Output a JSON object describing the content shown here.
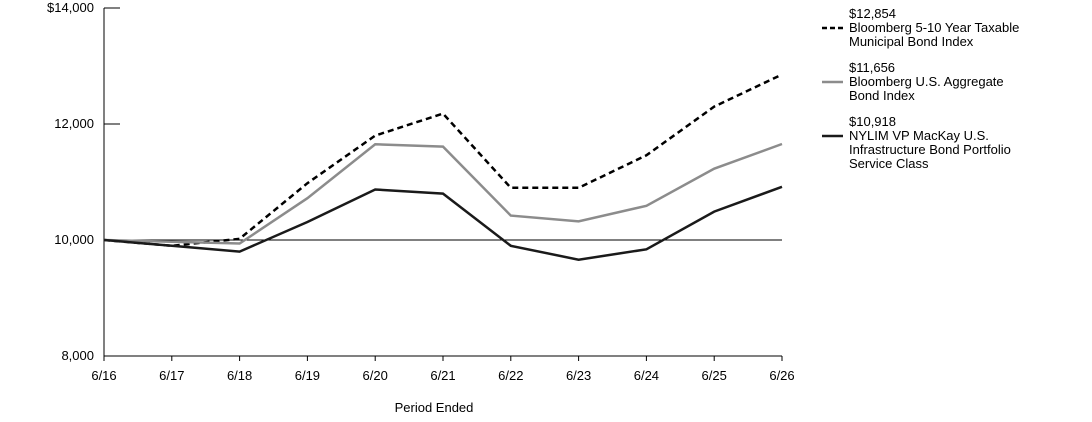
{
  "chart_data": {
    "type": "line",
    "title": "",
    "xlabel": "Period Ended",
    "ylabel": "",
    "categories": [
      "6/16",
      "6/17",
      "6/18",
      "6/19",
      "6/20",
      "6/21",
      "6/22",
      "6/23",
      "6/24",
      "6/25",
      "6/26"
    ],
    "ylim": [
      8000,
      14000
    ],
    "y_ticks": [
      8000,
      10000,
      12000,
      14000
    ],
    "y_tick_labels": [
      "8,000",
      "10,000",
      "12,000",
      "$14,000"
    ],
    "reference_line": 10000,
    "grid": false,
    "legend_position": "right",
    "series": [
      {
        "name": "Bloomberg 5-10 Year Taxable Municipal Bond Index",
        "end_label": "$12,854",
        "legend_lines": [
          "Bloomberg 5-10 Year Taxable",
          "Municipal Bond Index"
        ],
        "style": "dashed",
        "color": "#000000",
        "values": [
          10000,
          9900,
          10020,
          10980,
          11800,
          12180,
          10900,
          10900,
          11460,
          12300,
          12854
        ]
      },
      {
        "name": "Bloomberg U.S. Aggregate Bond Index",
        "end_label": "$11,656",
        "legend_lines": [
          "Bloomberg U.S. Aggregate",
          "Bond Index"
        ],
        "style": "solid",
        "color": "#8c8c8c",
        "values": [
          10000,
          9970,
          9940,
          10720,
          11650,
          11610,
          10420,
          10320,
          10590,
          11230,
          11656
        ]
      },
      {
        "name": "NYLIM VP MacKay U.S. Infrastructure Bond Portfolio Service Class",
        "end_label": "$10,918",
        "legend_lines": [
          "NYLIM VP MacKay U.S.",
          "Infrastructure Bond Portfolio",
          "Service Class"
        ],
        "style": "solid",
        "color": "#1a1a1a",
        "values": [
          10000,
          9900,
          9800,
          10310,
          10870,
          10800,
          9900,
          9660,
          9840,
          10490,
          10918
        ]
      }
    ]
  }
}
